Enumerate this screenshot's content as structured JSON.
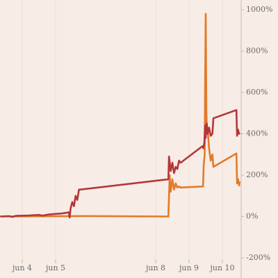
{
  "chart_data": {
    "type": "line",
    "xlim": [
      3.333,
      10.5625
    ],
    "xticks": [
      {
        "value": 4,
        "label": "jun 4"
      },
      {
        "value": 5,
        "label": "jun 5"
      },
      {
        "value": 8,
        "label": "jun 8"
      },
      {
        "value": 9,
        "label": "jun 9"
      },
      {
        "value": 10,
        "label": "jun 10"
      }
    ],
    "ylim": [
      -200,
      1000
    ],
    "yticks": [
      {
        "value": 1000,
        "label": "1000%"
      },
      {
        "value": 800,
        "label": "800%"
      },
      {
        "value": 600,
        "label": "600%"
      },
      {
        "value": 400,
        "label": "400%"
      },
      {
        "value": 200,
        "label": "200%"
      },
      {
        "value": 0,
        "label": "0%"
      },
      {
        "value": -200,
        "label": "-200%"
      }
    ],
    "grid": true,
    "series": [
      {
        "color": "#e07b2a",
        "x": [
          3.34,
          5.73,
          8.38,
          8.4,
          8.42,
          8.45,
          8.5,
          8.55,
          8.6,
          8.65,
          8.7,
          8.75,
          9.42,
          9.44,
          9.47,
          9.48,
          9.5,
          9.52,
          9.54,
          9.56,
          9.6,
          9.65,
          9.7,
          9.73,
          10.42,
          10.44,
          10.47,
          10.5,
          10.52
        ],
        "values": [
          0,
          2,
          0,
          100,
          200,
          120,
          180,
          130,
          160,
          140,
          145,
          140,
          145,
          250,
          300,
          600,
          980,
          500,
          400,
          420,
          330,
          270,
          300,
          240,
          305,
          160,
          180,
          150,
          170
        ]
      },
      {
        "color": "#b5363a",
        "x": [
          3.34,
          3.6,
          3.7,
          3.8,
          4.2,
          4.5,
          4.6,
          4.8,
          5.2,
          5.4,
          5.42,
          5.45,
          5.5,
          5.55,
          5.6,
          5.65,
          5.7,
          5.73,
          8.38,
          8.4,
          8.45,
          8.5,
          8.55,
          8.6,
          8.65,
          8.7,
          8.75,
          9.4,
          9.43,
          9.46,
          9.48,
          9.5,
          9.53,
          9.56,
          9.6,
          9.65,
          9.7,
          9.73,
          10.42,
          10.44,
          10.47,
          10.5,
          10.52
        ],
        "values": [
          0,
          2,
          -2,
          3,
          5,
          8,
          4,
          10,
          15,
          20,
          -5,
          40,
          70,
          50,
          100,
          80,
          130,
          130,
          180,
          290,
          220,
          260,
          210,
          240,
          230,
          270,
          260,
          340,
          330,
          360,
          440,
          380,
          450,
          400,
          430,
          390,
          400,
          475,
          515,
          390,
          420,
          400,
          405
        ]
      }
    ]
  }
}
